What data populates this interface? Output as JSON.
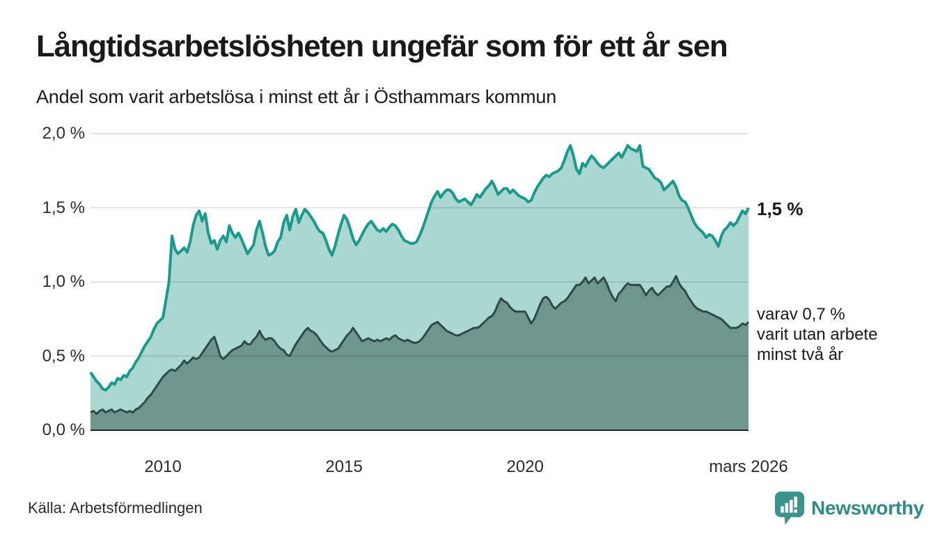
{
  "header": {
    "title": "Långtidsarbetslösheten ungefär som för ett år sen",
    "subtitle": "Andel som varit arbetslösa i minst ett år i Östhammars kommun"
  },
  "chart_data": {
    "type": "area",
    "title": "Långtidsarbetslösheten ungefär som för ett år sen",
    "subtitle": "Andel som varit arbetslösa i minst ett år i Östhammars kommun",
    "unit": "%",
    "frequency": "monthly",
    "x_start": "2008-01",
    "x_end": "2026-03",
    "ylim": [
      0,
      2.0
    ],
    "grid": "horizontal",
    "y_tick_labels": [
      "0,0 %",
      "0,5 %",
      "1,0 %",
      "1,5 %",
      "2,0 %"
    ],
    "y_tick_values": [
      0,
      0.5,
      1.0,
      1.5,
      2.0
    ],
    "x_ticks": [
      {
        "label": "2010",
        "month_index": 24
      },
      {
        "label": "2015",
        "month_index": 84
      },
      {
        "label": "2020",
        "month_index": 144
      },
      {
        "label": "mars 2026",
        "month_index": 218
      }
    ],
    "series": [
      {
        "name": "Andel arbetslösa minst ett år",
        "line_color": "#1a9a8c",
        "fill_color": "#aad7d0",
        "line_width": 4,
        "end_value_label": "1,5 %",
        "values": [
          0.39,
          0.36,
          0.33,
          0.31,
          0.28,
          0.27,
          0.29,
          0.32,
          0.31,
          0.35,
          0.34,
          0.37,
          0.36,
          0.4,
          0.42,
          0.46,
          0.49,
          0.53,
          0.57,
          0.6,
          0.63,
          0.68,
          0.72,
          0.74,
          0.76,
          0.88,
          1.0,
          1.31,
          1.22,
          1.19,
          1.21,
          1.23,
          1.2,
          1.27,
          1.38,
          1.45,
          1.48,
          1.41,
          1.46,
          1.33,
          1.26,
          1.28,
          1.22,
          1.28,
          1.31,
          1.27,
          1.38,
          1.33,
          1.3,
          1.33,
          1.29,
          1.24,
          1.19,
          1.22,
          1.25,
          1.35,
          1.41,
          1.33,
          1.24,
          1.18,
          1.19,
          1.21,
          1.27,
          1.3,
          1.4,
          1.45,
          1.35,
          1.44,
          1.49,
          1.4,
          1.45,
          1.49,
          1.47,
          1.44,
          1.41,
          1.37,
          1.34,
          1.33,
          1.28,
          1.22,
          1.18,
          1.24,
          1.32,
          1.39,
          1.45,
          1.42,
          1.36,
          1.29,
          1.25,
          1.28,
          1.32,
          1.36,
          1.39,
          1.41,
          1.38,
          1.35,
          1.34,
          1.36,
          1.34,
          1.37,
          1.39,
          1.38,
          1.35,
          1.31,
          1.28,
          1.27,
          1.26,
          1.26,
          1.27,
          1.31,
          1.36,
          1.42,
          1.48,
          1.54,
          1.58,
          1.61,
          1.57,
          1.6,
          1.62,
          1.62,
          1.6,
          1.56,
          1.54,
          1.55,
          1.56,
          1.54,
          1.52,
          1.55,
          1.59,
          1.57,
          1.6,
          1.63,
          1.65,
          1.68,
          1.64,
          1.59,
          1.61,
          1.63,
          1.63,
          1.6,
          1.62,
          1.6,
          1.58,
          1.57,
          1.56,
          1.54,
          1.55,
          1.6,
          1.64,
          1.67,
          1.7,
          1.72,
          1.71,
          1.73,
          1.74,
          1.75,
          1.77,
          1.82,
          1.88,
          1.92,
          1.85,
          1.76,
          1.73,
          1.8,
          1.78,
          1.82,
          1.85,
          1.83,
          1.8,
          1.78,
          1.77,
          1.79,
          1.81,
          1.83,
          1.85,
          1.87,
          1.84,
          1.88,
          1.92,
          1.9,
          1.89,
          1.88,
          1.92,
          1.78,
          1.77,
          1.76,
          1.73,
          1.7,
          1.69,
          1.67,
          1.62,
          1.64,
          1.66,
          1.68,
          1.64,
          1.58,
          1.55,
          1.54,
          1.5,
          1.45,
          1.4,
          1.37,
          1.35,
          1.33,
          1.3,
          1.32,
          1.31,
          1.28,
          1.24,
          1.31,
          1.35,
          1.37,
          1.4,
          1.38,
          1.4,
          1.44,
          1.48,
          1.46,
          1.5
        ]
      },
      {
        "name": "varav utan arbete minst två år",
        "line_color": "#2d4b45",
        "fill_color": "#6f968e",
        "line_width": 3,
        "end_note_lines": [
          "varav 0,7 %",
          "varit utan arbete",
          "minst två år"
        ],
        "values": [
          0.12,
          0.13,
          0.11,
          0.13,
          0.14,
          0.12,
          0.13,
          0.14,
          0.12,
          0.13,
          0.14,
          0.13,
          0.12,
          0.13,
          0.12,
          0.14,
          0.15,
          0.17,
          0.19,
          0.22,
          0.24,
          0.27,
          0.3,
          0.33,
          0.36,
          0.38,
          0.4,
          0.41,
          0.4,
          0.42,
          0.44,
          0.47,
          0.45,
          0.47,
          0.49,
          0.48,
          0.49,
          0.52,
          0.55,
          0.58,
          0.61,
          0.63,
          0.57,
          0.5,
          0.48,
          0.5,
          0.52,
          0.54,
          0.55,
          0.56,
          0.57,
          0.6,
          0.58,
          0.58,
          0.61,
          0.63,
          0.67,
          0.63,
          0.61,
          0.62,
          0.62,
          0.6,
          0.57,
          0.55,
          0.54,
          0.51,
          0.5,
          0.54,
          0.58,
          0.61,
          0.64,
          0.67,
          0.69,
          0.67,
          0.66,
          0.64,
          0.61,
          0.58,
          0.56,
          0.54,
          0.53,
          0.54,
          0.55,
          0.58,
          0.61,
          0.64,
          0.66,
          0.69,
          0.66,
          0.63,
          0.6,
          0.61,
          0.62,
          0.61,
          0.6,
          0.61,
          0.6,
          0.61,
          0.62,
          0.61,
          0.63,
          0.64,
          0.62,
          0.61,
          0.6,
          0.61,
          0.6,
          0.59,
          0.59,
          0.6,
          0.62,
          0.65,
          0.68,
          0.71,
          0.72,
          0.73,
          0.71,
          0.69,
          0.67,
          0.66,
          0.65,
          0.64,
          0.64,
          0.65,
          0.66,
          0.67,
          0.68,
          0.69,
          0.69,
          0.7,
          0.72,
          0.74,
          0.76,
          0.77,
          0.8,
          0.85,
          0.89,
          0.87,
          0.86,
          0.83,
          0.81,
          0.8,
          0.8,
          0.8,
          0.8,
          0.76,
          0.72,
          0.75,
          0.8,
          0.85,
          0.89,
          0.9,
          0.88,
          0.84,
          0.82,
          0.84,
          0.86,
          0.87,
          0.89,
          0.92,
          0.95,
          0.98,
          0.98,
          1.0,
          1.03,
          0.99,
          1.01,
          1.03,
          0.99,
          1.01,
          1.03,
          0.99,
          0.94,
          0.9,
          0.87,
          0.92,
          0.94,
          0.97,
          0.99,
          0.98,
          0.98,
          0.98,
          0.98,
          0.95,
          0.91,
          0.94,
          0.96,
          0.93,
          0.91,
          0.93,
          0.95,
          0.97,
          0.97,
          1.0,
          1.04,
          0.99,
          0.96,
          0.94,
          0.9,
          0.87,
          0.84,
          0.82,
          0.81,
          0.8,
          0.8,
          0.79,
          0.78,
          0.77,
          0.76,
          0.75,
          0.73,
          0.71,
          0.69,
          0.69,
          0.69,
          0.7,
          0.72,
          0.71,
          0.73
        ]
      }
    ],
    "annotations": {
      "end_value_total": "1,5 %",
      "end_note_lines": [
        "varav 0,7 %",
        "varit utan arbete",
        "minst två år"
      ]
    }
  },
  "footer": {
    "source": "Källa: Arbetsförmedlingen",
    "brand": "Newsworthy"
  },
  "colors": {
    "total_line": "#1a9a8c",
    "total_fill": "#aad7d0",
    "two_year_line": "#2d4b45",
    "two_year_fill": "#6f968e",
    "gridline": "rgba(0,0,0,0.14)",
    "baseline": "#222222",
    "text": "#1a1a1a",
    "brand_teal": "#3a948c"
  }
}
